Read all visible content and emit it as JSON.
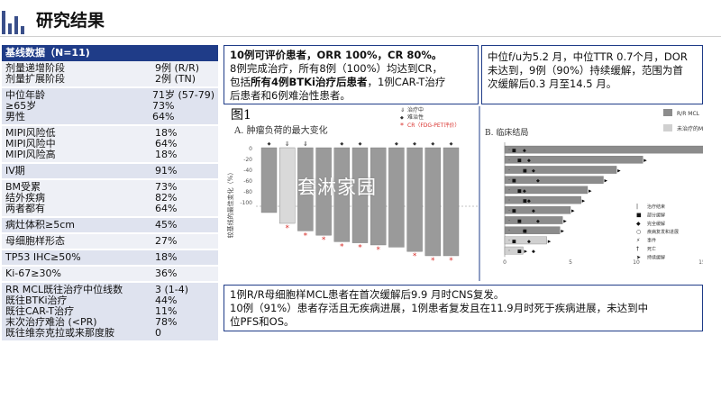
{
  "page_title": "研究结果",
  "table": {
    "header": "基线数据（N=11)",
    "rows": [
      {
        "labels": [
          "剂量递增阶段",
          "剂量扩展阶段"
        ],
        "values": [
          "9例 (R/R)",
          "2例 (TN)"
        ]
      },
      {
        "labels": [
          "中位年龄",
          "≥65岁",
          "男性"
        ],
        "values": [
          "71岁 (57-79)",
          "73%",
          "64%"
        ]
      },
      {
        "labels": [
          "MIPI风险低",
          "MIPI风险中",
          "MIPI风险高"
        ],
        "values": [
          "18%",
          "64%",
          "18%"
        ]
      },
      {
        "labels": [
          "IV期"
        ],
        "values": [
          "91%"
        ]
      },
      {
        "labels": [
          "BM受累",
          "结外疾病",
          "两者都有"
        ],
        "values": [
          "73%",
          "82%",
          "64%"
        ]
      },
      {
        "labels": [
          "病灶体积≥5cm"
        ],
        "values": [
          "45%"
        ]
      },
      {
        "labels": [
          "母细胞样形态"
        ],
        "values": [
          "27%"
        ]
      },
      {
        "labels": [
          "TP53 IHC≥50%"
        ],
        "values": [
          "18%"
        ]
      },
      {
        "labels": [
          "Ki-67≥30%"
        ],
        "values": [
          "36%"
        ]
      },
      {
        "labels": [
          "RR MCL既往治疗中位线数",
          "既往BTKi治疗",
          "既往CAR-T治疗",
          "末次治疗难治 (<PR)",
          "既往维奈克拉或来那度胺"
        ],
        "values": [
          "3 (1-4)",
          "44%",
          "11%",
          "78%",
          "0"
        ]
      }
    ]
  },
  "box1": {
    "line1_bold": "10例可评价患者，ORR 100%，CR 80%。",
    "line2": "8例完成治疗，所有8例（100%）均达到CR，",
    "line3_pre": "包括",
    "line3_bold": "所有4例BTKi治疗后患者",
    "line3_post": "，1例CAR-T治疗",
    "line4": "后患者和6例难治性患者。"
  },
  "box2": {
    "line1": "中位f/u为5.2 月，中位TTR 0.7个月，DOR",
    "line2": "未达到，9例（90%）持续缓解，范围为首",
    "line3": "次缓解后0.3 月至14.5 月。"
  },
  "box3": {
    "line1": "1例R/R母细胞样MCL患者在首次缓解后9.9 月时CNS复发。",
    "line2": "10例（91%）患者存活且无疾病进展，1例患者复发且在11.9月时死于疾病进展，未达到中",
    "line3": "位PFS和OS。"
  },
  "figure": {
    "fig_label": "图1",
    "panel_a_title": "A. 肿瘤负荷的最大变化",
    "panel_a_ylabel": "较基线的最佳变化（%）",
    "panel_a_legend": [
      "治疗中",
      "难治性",
      "CR（FDG-PET评价）"
    ],
    "panel_a_ticks": [
      "-100",
      "-80",
      "-60",
      "-40",
      "-20",
      "0",
      "20",
      "40",
      "60",
      "80",
      "100"
    ],
    "panel_b_title": "B. 临床结局",
    "panel_b_legend": [
      "R/R MCL",
      "未治疗的MCL"
    ],
    "panel_b_markers": [
      "治疗结束",
      "部分缓解",
      "完全缓解",
      "疾病复发和进展",
      "事件",
      "死亡",
      "持续缓解"
    ],
    "panel_b_ticks": [
      "0",
      "5",
      "10",
      "15"
    ],
    "watermark": "套淋家园"
  },
  "chart_data": [
    {
      "type": "bar",
      "title": "A. 肿瘤负荷的最大变化",
      "ylabel": "较基线的最佳变化（%）",
      "ylim": [
        -100,
        100
      ],
      "values": [
        -60,
        -70,
        -77,
        -81,
        -87,
        -88,
        -90,
        -92,
        -96,
        -100,
        -100
      ],
      "colors": [
        "#9a9a9a",
        "#d9d9d9",
        "#9a9a9a",
        "#9a9a9a",
        "#9a9a9a",
        "#9a9a9a",
        "#9a9a9a",
        "#9a9a9a",
        "#9a9a9a",
        "#9a9a9a",
        "#9a9a9a"
      ],
      "cr_marker": [
        false,
        true,
        true,
        true,
        true,
        true,
        true,
        false,
        true,
        true,
        true
      ],
      "top_marker": [
        "diamond",
        "arrow",
        "arrow",
        "none",
        "diamond",
        "diamond",
        "none",
        "diamond",
        "diamond",
        "diamond",
        "diamond"
      ]
    },
    {
      "type": "bar",
      "title": "B. 临床结局",
      "xlim": [
        0,
        17
      ],
      "series": [
        {
          "name": "R/R MCL",
          "values": [
            15.5,
            10.5,
            8.5,
            7.5,
            6.3,
            5.8,
            5.0,
            4.4,
            4.2,
            3.2,
            1.4
          ]
        }
      ],
      "bar_colors": [
        "#8c8c8c",
        "#8c8c8c",
        "#8c8c8c",
        "#8c8c8c",
        "#8c8c8c",
        "#8c8c8c",
        "#8c8c8c",
        "#8c8c8c",
        "#8c8c8c",
        "#d0d0d0",
        "#d0d0d0"
      ]
    }
  ]
}
